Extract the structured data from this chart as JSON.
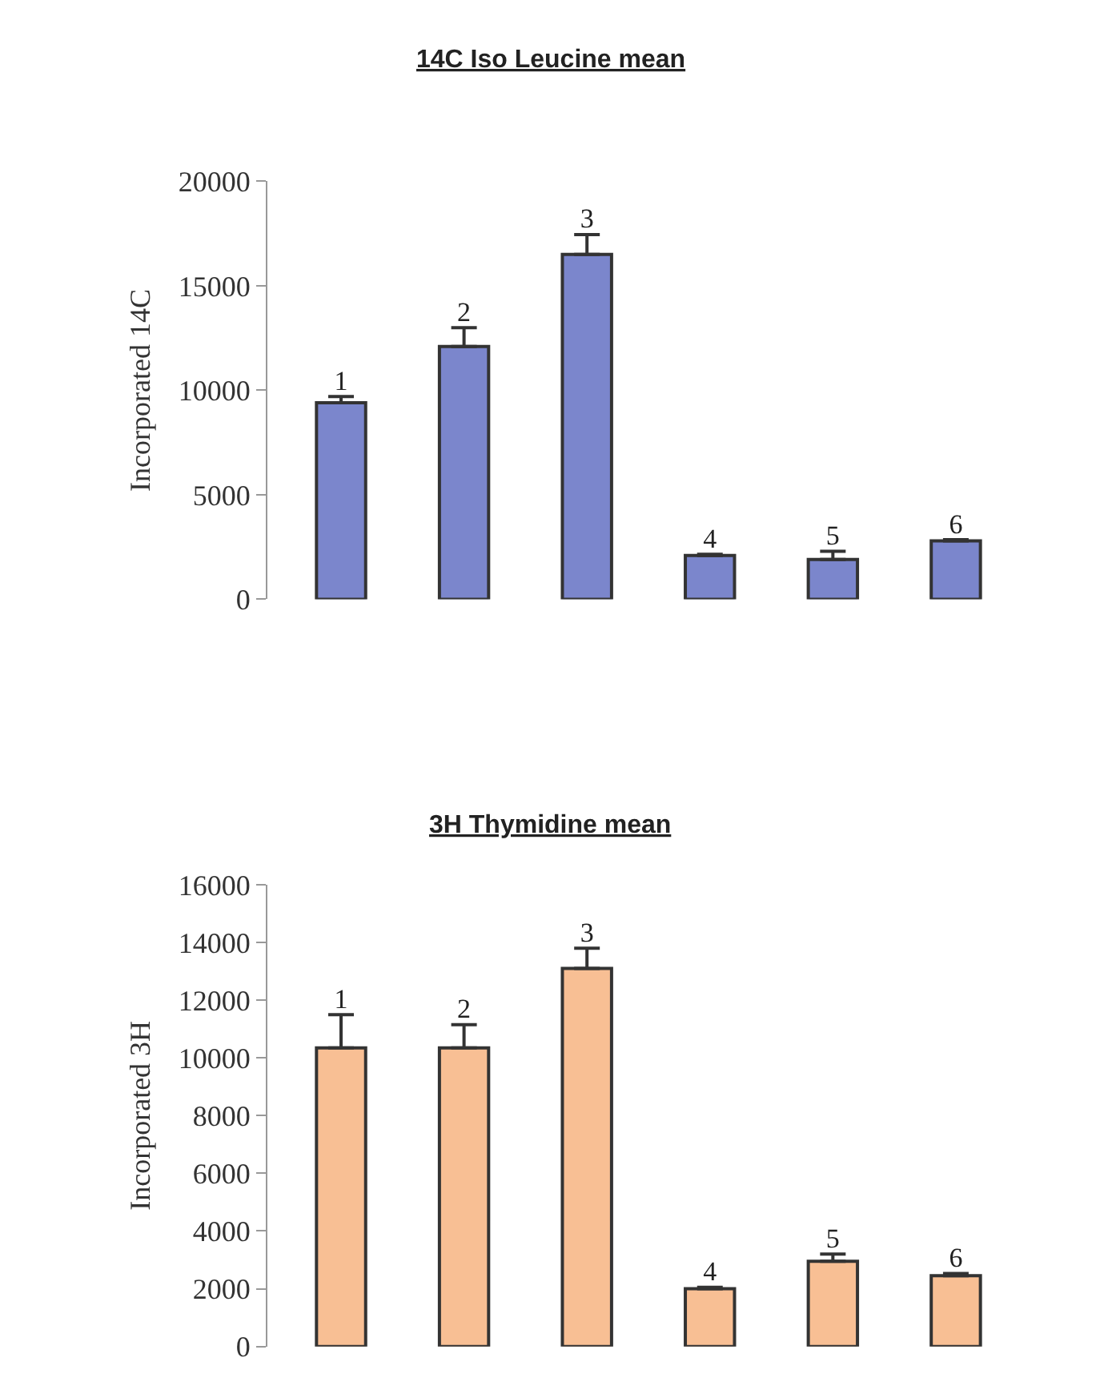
{
  "chart_data": [
    {
      "type": "bar",
      "title": "14C Iso Leucine mean",
      "ylabel": "Incorporated 14C",
      "categories": [
        "1",
        "2",
        "3",
        "4",
        "5",
        "6"
      ],
      "values": [
        9400,
        12100,
        16500,
        2100,
        1900,
        2800
      ],
      "color": "#7b86cc",
      "errors": [
        [
          9400,
          9700
        ],
        [
          12100,
          13000
        ],
        [
          16500,
          17450
        ],
        [
          2100,
          2150
        ],
        [
          1900,
          2300
        ],
        [
          2800,
          2850
        ]
      ],
      "ylim": [
        0,
        20000
      ],
      "yticks": [
        0,
        5000,
        10000,
        15000,
        20000
      ],
      "tick_labels": "y"
    },
    {
      "type": "bar",
      "title": "3H Thymidine mean",
      "ylabel": "Incorporated 3H",
      "categories": [
        "1",
        "2",
        "3",
        "4",
        "5",
        "6"
      ],
      "values": [
        10350,
        10350,
        13100,
        2000,
        2950,
        2450
      ],
      "color": "#f8bf94",
      "errors": [
        [
          10350,
          11500
        ],
        [
          10350,
          11150
        ],
        [
          13100,
          13800
        ],
        [
          2000,
          2050
        ],
        [
          2950,
          3200
        ],
        [
          2450,
          2530
        ]
      ],
      "ylim": [
        0,
        16000
      ],
      "yticks": [
        0,
        2000,
        4000,
        6000,
        8000,
        10000,
        12000,
        14000,
        16000
      ],
      "tick_labels": "y"
    }
  ]
}
